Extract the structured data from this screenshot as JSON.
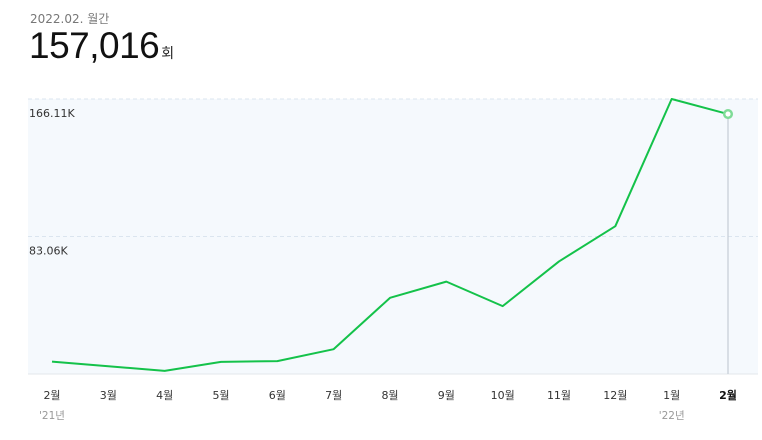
{
  "header": {
    "period": "2022.02. 월간",
    "total": "157,016",
    "unit": "회"
  },
  "colors": {
    "line": "#14c24a",
    "plot_bg": "#f5f9fd",
    "grid": "#dbe5ef",
    "cursor": "#c5cdd5"
  },
  "chart_data": {
    "type": "line",
    "categories": [
      "2월",
      "3월",
      "4월",
      "5월",
      "6월",
      "7월",
      "8월",
      "9월",
      "10월",
      "11월",
      "12월",
      "1월",
      "2월"
    ],
    "year_labels": [
      {
        "index": 0,
        "label": "'21년"
      },
      {
        "index": 11,
        "label": "'22년"
      }
    ],
    "values": [
      7500,
      4700,
      1900,
      7300,
      7800,
      15000,
      46000,
      55800,
      41000,
      68000,
      89300,
      166110,
      157016
    ],
    "yticks": [
      {
        "value": 83055,
        "label": "83.06K"
      },
      {
        "value": 166110,
        "label": "166.11K"
      }
    ],
    "ylim": [
      0,
      166110
    ],
    "selected_index": 12,
    "grid": true
  }
}
